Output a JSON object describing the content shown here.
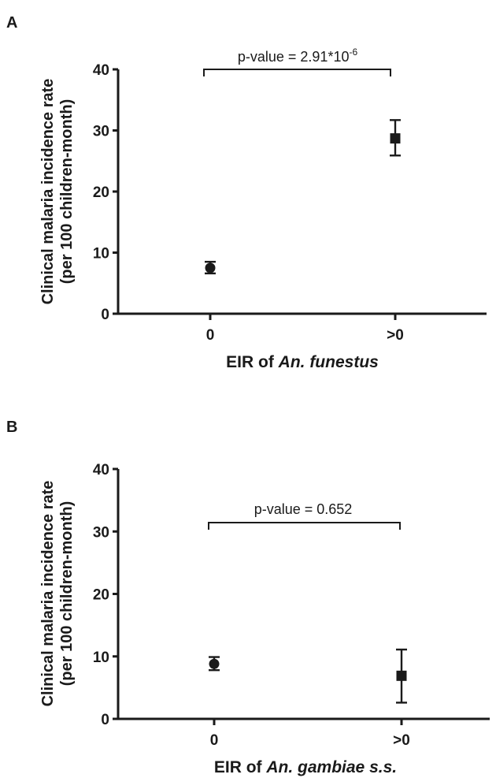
{
  "chart_data": [
    {
      "type": "scatter",
      "panel_label": "A",
      "xlabel_prefix": "EIR of ",
      "xlabel_italic": "An. funestus",
      "xlabel_suffix": "",
      "ylabel_line1": "Clinical malaria incidence rate",
      "ylabel_line2": "(per 100 children-month)",
      "categories": [
        "0",
        ">0"
      ],
      "ylim": [
        0,
        40
      ],
      "yticks": [
        0,
        10,
        20,
        30,
        40
      ],
      "points": [
        {
          "x": "0",
          "y": 7.5,
          "err_low": 6.6,
          "err_high": 8.5,
          "marker": "circle"
        },
        {
          "x": ">0",
          "y": 28.7,
          "err_low": 25.9,
          "err_high": 31.7,
          "marker": "square"
        }
      ],
      "annotation": {
        "text": "p-value = 2.91*10",
        "superscript": "-6"
      },
      "grid": false,
      "legend": "none"
    },
    {
      "type": "scatter",
      "panel_label": "B",
      "xlabel_prefix": "EIR of ",
      "xlabel_italic": "An. gambiae s.s.",
      "xlabel_suffix": "",
      "ylabel_line1": "Clinical malaria incidence rate",
      "ylabel_line2": "(per 100 children-month)",
      "categories": [
        "0",
        ">0"
      ],
      "ylim": [
        0,
        40
      ],
      "yticks": [
        0,
        10,
        20,
        30,
        40
      ],
      "points": [
        {
          "x": "0",
          "y": 8.8,
          "err_low": 7.8,
          "err_high": 9.9,
          "marker": "circle"
        },
        {
          "x": ">0",
          "y": 6.9,
          "err_low": 2.6,
          "err_high": 11.1,
          "marker": "square"
        }
      ],
      "annotation": {
        "text": "p-value = 0.652",
        "superscript": ""
      },
      "grid": false,
      "legend": "none"
    }
  ]
}
